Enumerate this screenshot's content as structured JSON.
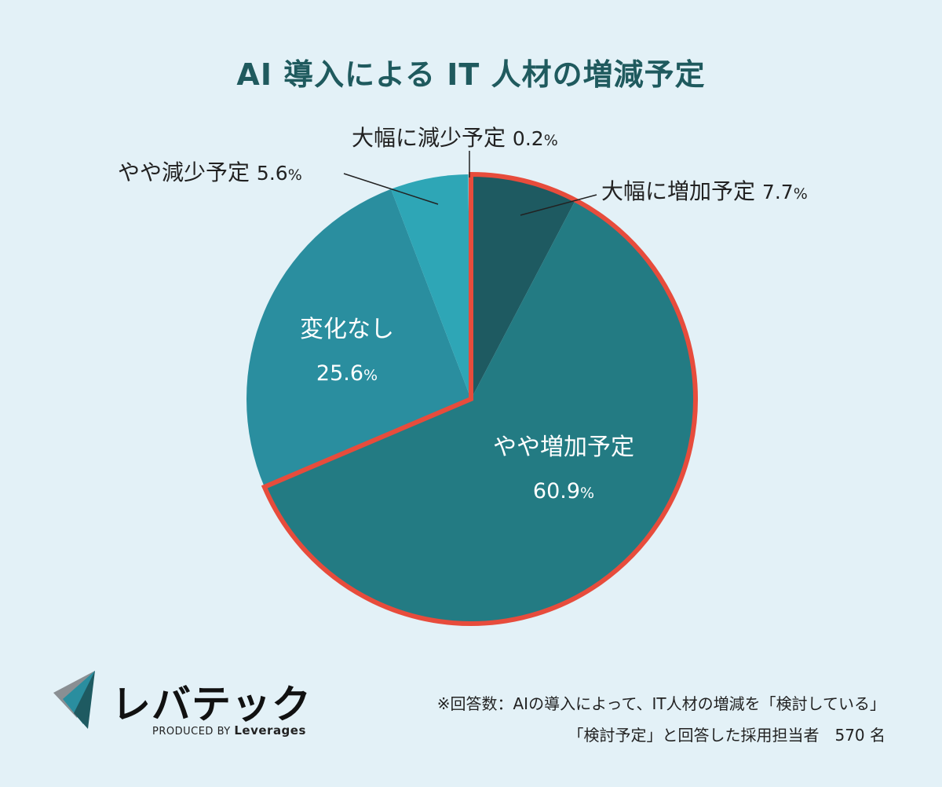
{
  "title": "AI 導入による IT 人材の増減予定",
  "chart_data": {
    "type": "pie",
    "title": "AI 導入による IT 人材の増減予定",
    "slices": [
      {
        "label": "大幅に増加予定",
        "value": 7.7,
        "color": "#1e5a61",
        "highlighted": true
      },
      {
        "label": "やや増加予定",
        "value": 60.9,
        "color": "#237b83",
        "highlighted": true
      },
      {
        "label": "変化なし",
        "value": 25.6,
        "color": "#2a8e9f",
        "highlighted": false
      },
      {
        "label": "やや減少予定",
        "value": 5.6,
        "color": "#2ea6b6",
        "highlighted": false
      },
      {
        "label": "大幅に減少予定",
        "value": 0.2,
        "color": "#a8dbe6",
        "highlighted": false
      }
    ],
    "highlight_color": "#e74c3c",
    "start_angle": "12 o'clock",
    "direction": "clockwise"
  },
  "labels": {
    "large_increase": {
      "name": "大幅に増加予定",
      "pct": "7.7",
      "unit": "%"
    },
    "slight_increase": {
      "name": "やや増加予定",
      "pct": "60.9",
      "unit": "%"
    },
    "no_change": {
      "name": "変化なし",
      "pct": "25.6",
      "unit": "%"
    },
    "slight_decrease": {
      "name": "やや減少予定",
      "pct": "5.6",
      "unit": "%"
    },
    "large_decrease": {
      "name": "大幅に減少予定",
      "pct": "0.2",
      "unit": "%"
    }
  },
  "logo": {
    "wordmark": "レバテック",
    "produced_by": "PRODUCED BY",
    "company": "Leverages"
  },
  "note": {
    "line1": "※回答数：AIの導入によって、IT人材の増減を「検討している」",
    "line2": "「検討予定」と回答した採用担当者　570 名"
  }
}
